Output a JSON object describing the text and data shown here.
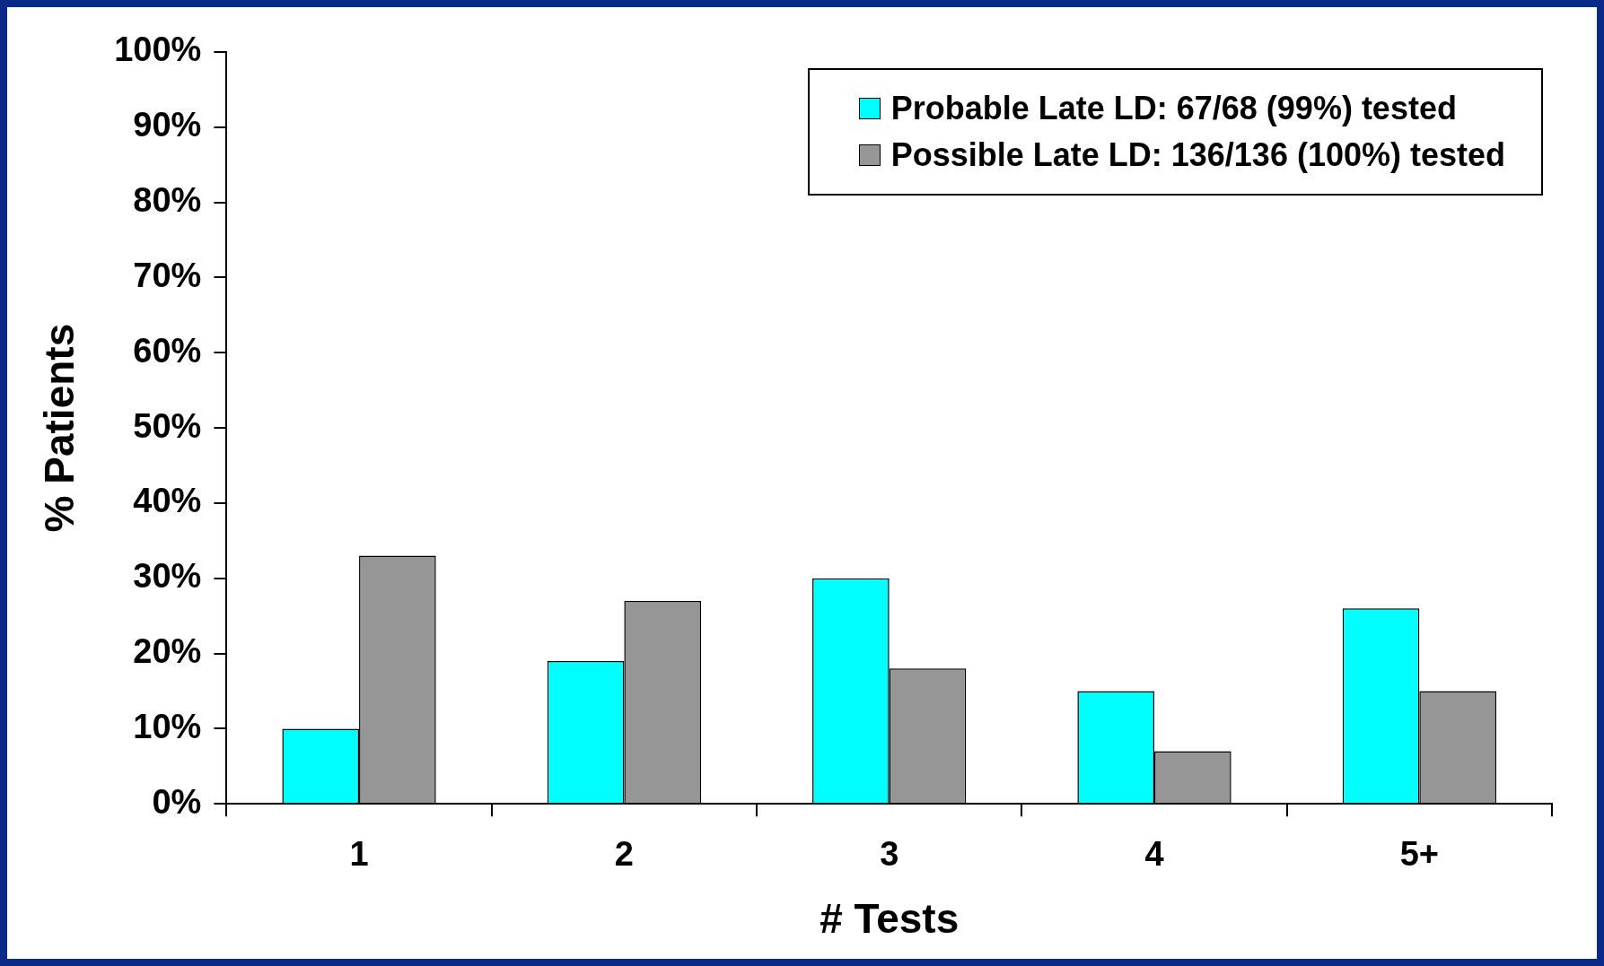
{
  "chart_data": {
    "type": "bar",
    "xlabel": "# Tests",
    "ylabel": "% Patients",
    "categories": [
      "1",
      "2",
      "3",
      "4",
      "5+"
    ],
    "series": [
      {
        "name": "Probable Late LD: 67/68 (99%) tested",
        "color": "#00ffff",
        "values": [
          10,
          19,
          30,
          15,
          26
        ]
      },
      {
        "name": "Possible Late LD: 136/136 (100%) tested",
        "color": "#969696",
        "values": [
          33,
          27,
          18,
          7,
          15
        ]
      }
    ],
    "ylim": [
      0,
      100
    ],
    "yticks": [
      {
        "value": 0,
        "label": "0%"
      },
      {
        "value": 10,
        "label": "10%"
      },
      {
        "value": 20,
        "label": "20%"
      },
      {
        "value": 30,
        "label": "30%"
      },
      {
        "value": 40,
        "label": "40%"
      },
      {
        "value": 50,
        "label": "50%"
      },
      {
        "value": 60,
        "label": "60%"
      },
      {
        "value": 70,
        "label": "70%"
      },
      {
        "value": 80,
        "label": "80%"
      },
      {
        "value": 90,
        "label": "90%"
      },
      {
        "value": 100,
        "label": "100%"
      }
    ],
    "grid": false,
    "legend": "top right"
  }
}
